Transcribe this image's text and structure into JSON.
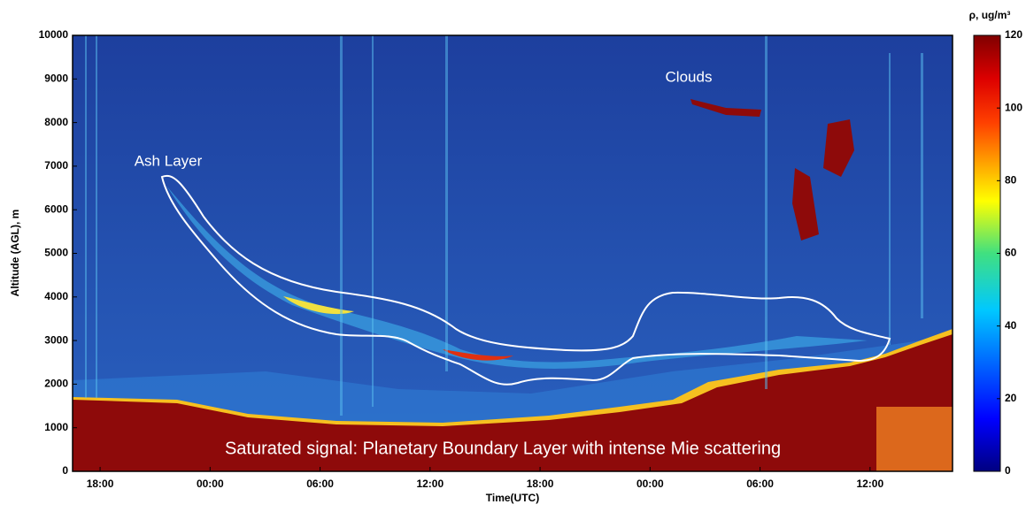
{
  "chart_data": {
    "type": "heatmap",
    "xlabel": "Time(UTC)",
    "ylabel": "Altitude (AGL), m",
    "xlim": [
      -1.5,
      46.5
    ],
    "xticks": [
      {
        "value": 0,
        "label": "18:00"
      },
      {
        "value": 6,
        "label": "00:00"
      },
      {
        "value": 12,
        "label": "06:00"
      },
      {
        "value": 18,
        "label": "12:00"
      },
      {
        "value": 24,
        "label": "18:00"
      },
      {
        "value": 30,
        "label": "00:00"
      },
      {
        "value": 36,
        "label": "06:00"
      },
      {
        "value": 42,
        "label": "12:00"
      }
    ],
    "ylim": [
      0,
      10000
    ],
    "yticks": [
      0,
      1000,
      2000,
      3000,
      4000,
      5000,
      6000,
      7000,
      8000,
      9000,
      10000
    ],
    "colorbar_title": "ρ, ug/m³",
    "clim": [
      0,
      120
    ],
    "cticks": [
      0,
      20,
      40,
      60,
      80,
      100,
      120
    ],
    "colormap": "jet",
    "annotations": [
      "Ash Layer",
      "Clouds",
      "Saturated signal: Planetary Boundary Layer with intense Mie scattering"
    ]
  }
}
